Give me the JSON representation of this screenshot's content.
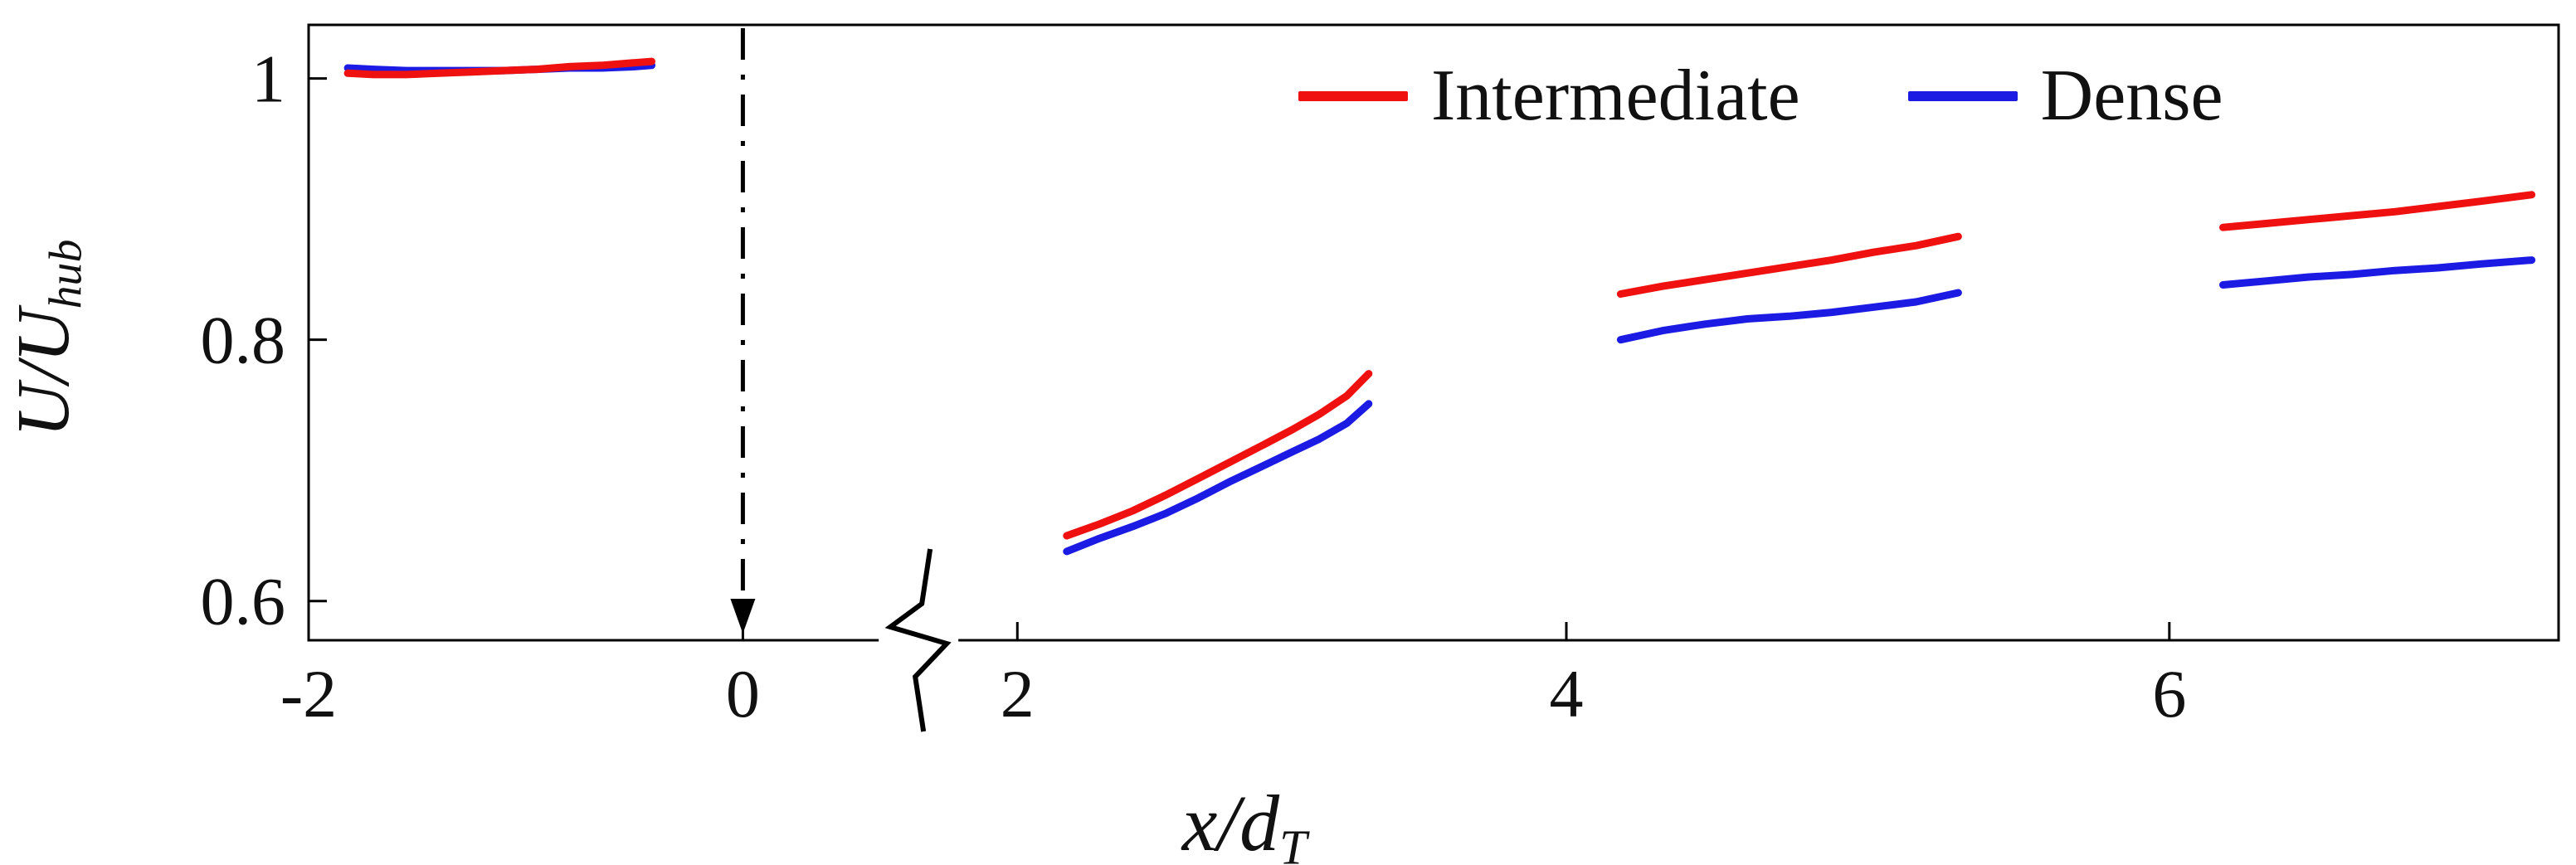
{
  "figure": {
    "background": "#ffffff",
    "axis_color": "#000000",
    "text_color": "#111111"
  },
  "chart_data": {
    "type": "line",
    "title": "",
    "xlabel": {
      "main": "x/d",
      "sub": "T"
    },
    "ylabel": {
      "main": "U/U",
      "sub": "hub"
    },
    "xticks": [
      -2,
      0,
      2,
      4,
      6
    ],
    "yticks": [
      0.6,
      0.8,
      1
    ],
    "ylim": [
      0.57,
      1.041
    ],
    "x_anchors": [
      [
        -2,
        0
      ],
      [
        0,
        0.193
      ],
      [
        2,
        0.315
      ],
      [
        4,
        0.559
      ],
      [
        6,
        0.827
      ],
      [
        7.45,
        1
      ]
    ],
    "axis_break": {
      "x": 1.28
    },
    "vline": {
      "x": 0,
      "style": "dash-dot",
      "arrow": "down",
      "color": "#000000"
    },
    "grid": false,
    "legend_position": "top-right",
    "series": [
      {
        "name": "Intermediate",
        "color": "#ef1010",
        "segments": [
          [
            [
              -1.82,
              1.004
            ],
            [
              -1.7,
              1.003
            ],
            [
              -1.55,
              1.003
            ],
            [
              -1.4,
              1.004
            ],
            [
              -1.25,
              1.005
            ],
            [
              -1.1,
              1.006
            ],
            [
              -0.95,
              1.007
            ],
            [
              -0.8,
              1.009
            ],
            [
              -0.65,
              1.01
            ],
            [
              -0.5,
              1.012
            ],
            [
              -0.42,
              1.013
            ]
          ],
          [
            [
              2.18,
              0.65
            ],
            [
              2.3,
              0.659
            ],
            [
              2.42,
              0.669
            ],
            [
              2.54,
              0.681
            ],
            [
              2.66,
              0.694
            ],
            [
              2.78,
              0.707
            ],
            [
              2.9,
              0.72
            ],
            [
              3.0,
              0.731
            ],
            [
              3.1,
              0.743
            ],
            [
              3.2,
              0.757
            ],
            [
              3.28,
              0.774
            ]
          ],
          [
            [
              4.18,
              0.835
            ],
            [
              4.32,
              0.841
            ],
            [
              4.46,
              0.846
            ],
            [
              4.6,
              0.851
            ],
            [
              4.74,
              0.856
            ],
            [
              4.88,
              0.861
            ],
            [
              5.02,
              0.867
            ],
            [
              5.16,
              0.872
            ],
            [
              5.3,
              0.879
            ]
          ],
          [
            [
              6.2,
              0.886
            ],
            [
              6.36,
              0.889
            ],
            [
              6.52,
              0.892
            ],
            [
              6.68,
              0.895
            ],
            [
              6.84,
              0.898
            ],
            [
              7.0,
              0.902
            ],
            [
              7.16,
              0.906
            ],
            [
              7.35,
              0.911
            ]
          ]
        ]
      },
      {
        "name": "Dense",
        "color": "#1b1be4",
        "segments": [
          [
            [
              -1.82,
              1.008
            ],
            [
              -1.7,
              1.007
            ],
            [
              -1.55,
              1.006
            ],
            [
              -1.4,
              1.006
            ],
            [
              -1.25,
              1.006
            ],
            [
              -1.1,
              1.006
            ],
            [
              -0.95,
              1.007
            ],
            [
              -0.8,
              1.008
            ],
            [
              -0.65,
              1.008
            ],
            [
              -0.5,
              1.009
            ],
            [
              -0.42,
              1.01
            ]
          ],
          [
            [
              2.18,
              0.638
            ],
            [
              2.3,
              0.648
            ],
            [
              2.42,
              0.657
            ],
            [
              2.54,
              0.667
            ],
            [
              2.66,
              0.679
            ],
            [
              2.78,
              0.692
            ],
            [
              2.9,
              0.704
            ],
            [
              3.0,
              0.714
            ],
            [
              3.1,
              0.724
            ],
            [
              3.2,
              0.736
            ],
            [
              3.28,
              0.751
            ]
          ],
          [
            [
              4.18,
              0.8
            ],
            [
              4.32,
              0.807
            ],
            [
              4.46,
              0.812
            ],
            [
              4.6,
              0.816
            ],
            [
              4.74,
              0.818
            ],
            [
              4.88,
              0.821
            ],
            [
              5.02,
              0.825
            ],
            [
              5.16,
              0.829
            ],
            [
              5.3,
              0.836
            ]
          ],
          [
            [
              6.2,
              0.842
            ],
            [
              6.36,
              0.845
            ],
            [
              6.52,
              0.848
            ],
            [
              6.68,
              0.85
            ],
            [
              6.84,
              0.853
            ],
            [
              7.0,
              0.855
            ],
            [
              7.16,
              0.858
            ],
            [
              7.35,
              0.861
            ]
          ]
        ]
      }
    ]
  }
}
